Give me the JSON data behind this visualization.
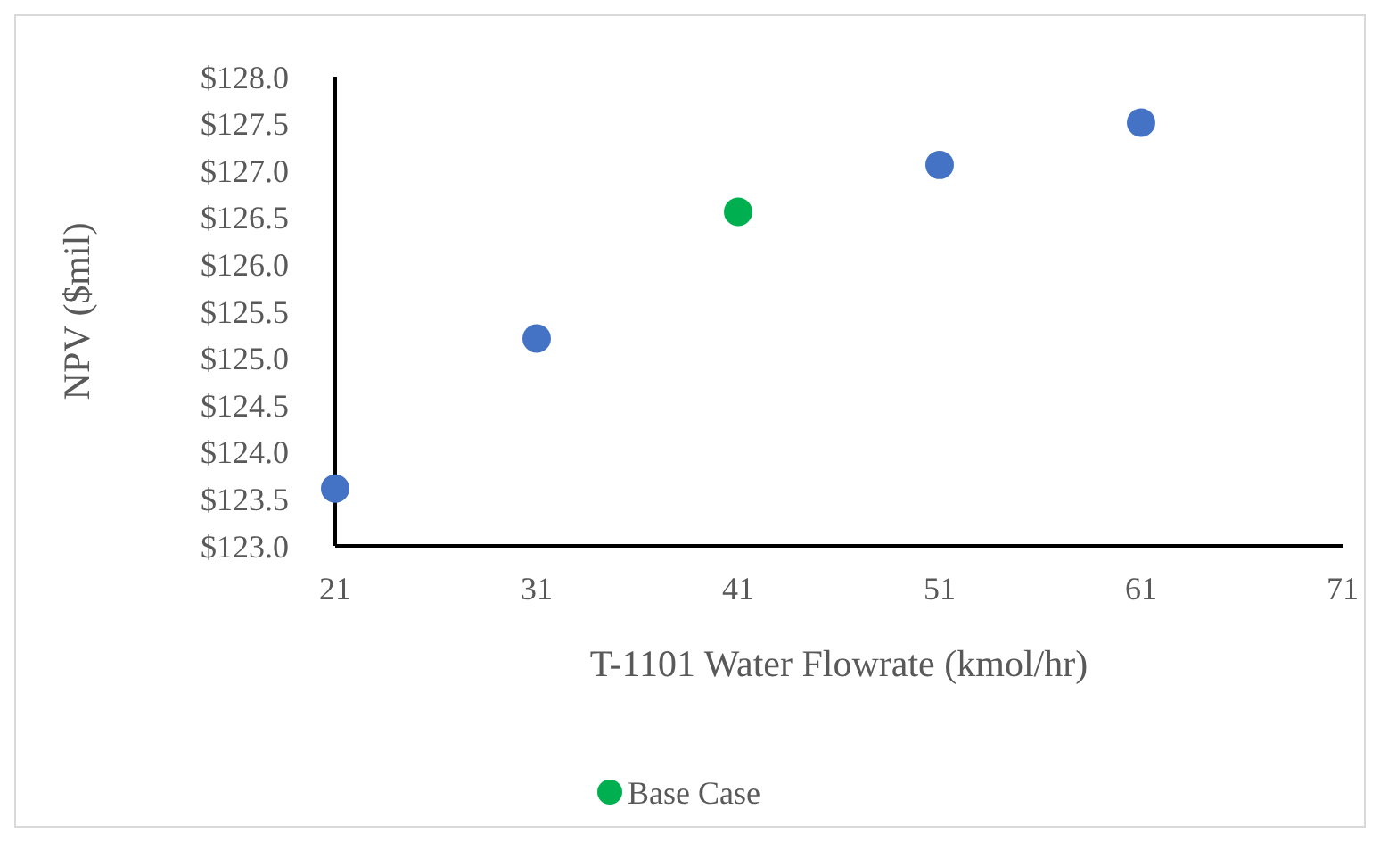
{
  "chart_data": {
    "type": "scatter",
    "xlabel": "T-1101 Water Flowrate (kmol/hr)",
    "ylabel": "NPV ($mil)",
    "series": [
      {
        "color": "#4472c4",
        "x": [
          21,
          31,
          51,
          61
        ],
        "values": [
          123.61,
          125.21,
          127.06,
          127.51
        ]
      },
      {
        "name": "Base Case",
        "color": "#00b050",
        "x": [
          41
        ],
        "values": [
          126.56
        ]
      }
    ],
    "xlim": [
      21,
      71
    ],
    "xticks": [
      21,
      31,
      41,
      51,
      61,
      71
    ],
    "ylim": [
      123,
      128
    ],
    "yticks": [
      {
        "value": 123,
        "label": "$123.0"
      },
      {
        "value": 123.5,
        "label": "$123.5"
      },
      {
        "value": 124,
        "label": "$124.0"
      },
      {
        "value": 124.5,
        "label": "$124.5"
      },
      {
        "value": 125,
        "label": "$125.0"
      },
      {
        "value": 125.5,
        "label": "$125.5"
      },
      {
        "value": 126,
        "label": "$126.0"
      },
      {
        "value": 126.5,
        "label": "$126.5"
      },
      {
        "value": 127,
        "label": "$127.0"
      },
      {
        "value": 127.5,
        "label": "$127.5"
      },
      {
        "value": 128,
        "label": "$128.0"
      }
    ],
    "grid": false,
    "legend": "bottom",
    "marker": "circle"
  }
}
